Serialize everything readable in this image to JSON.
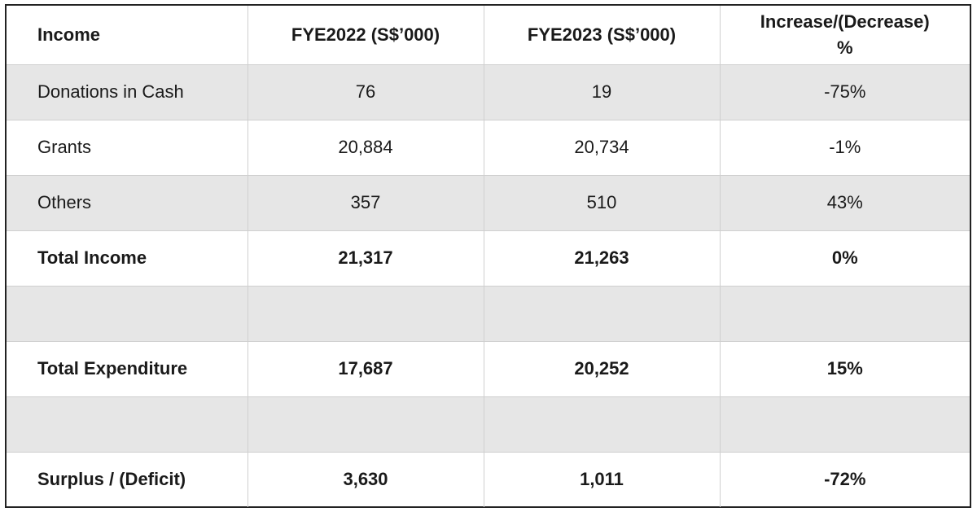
{
  "table": {
    "headers": {
      "col0": "Income",
      "col1": "FYE2022 (S$’000)",
      "col2": "FYE2023 (S$’000)",
      "col3_line1": "Increase/(Decrease)",
      "col3_line2": "%"
    },
    "rows": [
      {
        "label": "Donations in Cash",
        "fye2022": "76",
        "fye2023": "19",
        "change": "-75%"
      },
      {
        "label": "Grants",
        "fye2022": "20,884",
        "fye2023": "20,734",
        "change": "-1%"
      },
      {
        "label": "Others",
        "fye2022": "357",
        "fye2023": "510",
        "change": "43%"
      },
      {
        "label": "Total Income",
        "fye2022": "21,317",
        "fye2023": "21,263",
        "change": "0%"
      },
      {
        "label": "",
        "fye2022": "",
        "fye2023": "",
        "change": ""
      },
      {
        "label": "Total Expenditure",
        "fye2022": "17,687",
        "fye2023": "20,252",
        "change": "15%"
      },
      {
        "label": "",
        "fye2022": "",
        "fye2023": "",
        "change": ""
      },
      {
        "label": "Surplus / (Deficit)",
        "fye2022": "3,630",
        "fye2023": "1,011",
        "change": "-72%"
      }
    ]
  }
}
